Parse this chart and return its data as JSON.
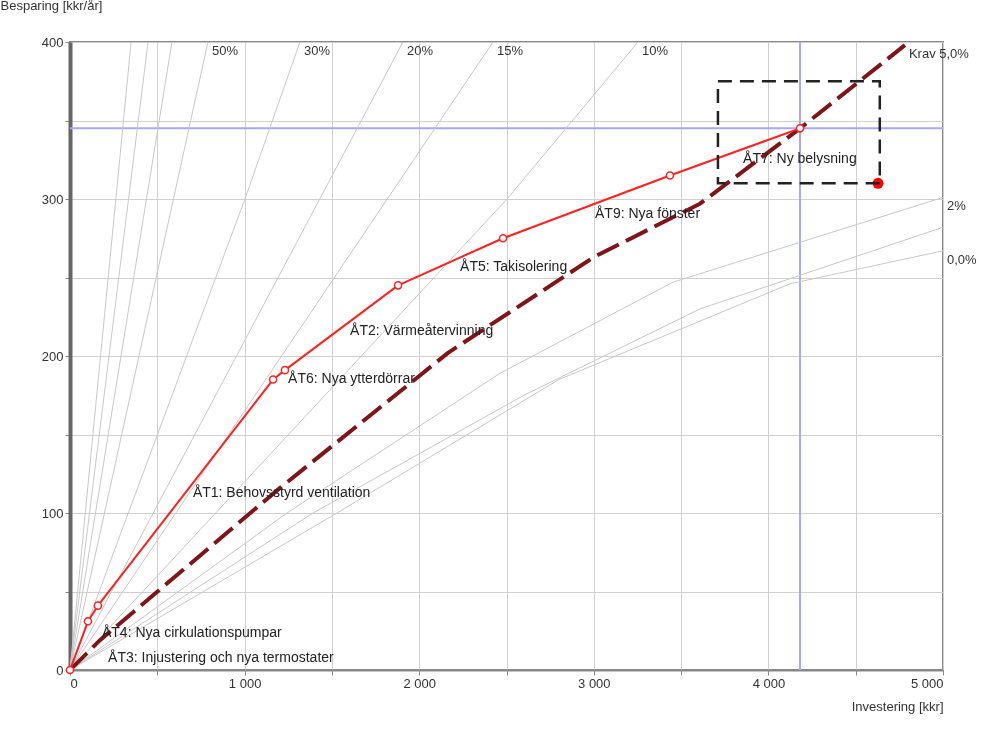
{
  "chart_data": {
    "type": "line",
    "xlabel": "Investering [kkr]",
    "ylabel": "Besparing [kkr/år]",
    "xlim": [
      0,
      5000
    ],
    "ylim": [
      0,
      400
    ],
    "xticks": [
      0,
      {
        "value": 500,
        "label": null
      },
      {
        "value": 1000,
        "label": "1 000"
      },
      {
        "value": 1500,
        "label": null
      },
      {
        "value": 2000,
        "label": "2 000"
      },
      {
        "value": 2500,
        "label": null
      },
      {
        "value": 3000,
        "label": "3 000"
      },
      {
        "value": 3500,
        "label": null
      },
      {
        "value": 4000,
        "label": "4 000"
      },
      {
        "value": 4500,
        "label": null
      },
      {
        "value": 5000,
        "label": "5 000"
      }
    ],
    "yticks": [
      0,
      {
        "value": 50,
        "label": null
      },
      100,
      {
        "value": 150,
        "label": null
      },
      200,
      {
        "value": 250,
        "label": null
      },
      300,
      {
        "value": 350,
        "label": null
      },
      400
    ],
    "grid": true,
    "series": [
      {
        "color": "#c8c8c8",
        "x": [
          0,
          350
        ],
        "values": [
          0,
          400
        ]
      },
      {
        "color": "#c8c8c8",
        "x": [
          0,
          447
        ],
        "values": [
          0,
          400
        ]
      },
      {
        "color": "#c8c8c8",
        "x": [
          0,
          584
        ],
        "values": [
          0,
          400
        ]
      },
      {
        "name": "50%",
        "color": "#c8c8c8",
        "x": [
          0,
          790
        ],
        "values": [
          0,
          400
        ]
      },
      {
        "name": "30%",
        "color": "#c8c8c8",
        "x": [
          0,
          1002,
          1317
        ],
        "values": [
          0,
          300,
          400
        ]
      },
      {
        "name": "20%",
        "color": "#c8c8c8",
        "x": [
          0,
          1907
        ],
        "values": [
          0,
          400
        ]
      },
      {
        "name": "15%",
        "color": "#c8c8c8",
        "x": [
          0,
          2423
        ],
        "values": [
          0,
          400
        ]
      },
      {
        "name": "10%",
        "color": "#c8c8c8",
        "x": [
          0,
          2503,
          3253
        ],
        "values": [
          0,
          300,
          400
        ]
      },
      {
        "name": "2%",
        "color": "#c8c8c8",
        "x": [
          0,
          1243,
          2463,
          3453,
          5000
        ],
        "values": [
          0,
          100,
          189,
          247,
          301
        ]
      },
      {
        "color": "#c8c8c8",
        "x": [
          0,
          1392,
          2600,
          3608,
          5000
        ],
        "values": [
          0,
          100,
          175,
          230,
          282
        ]
      },
      {
        "name": "0,0%",
        "color": "#c8c8c8",
        "x": [
          0,
          1529,
          2800,
          4124,
          5000
        ],
        "values": [
          0,
          100,
          185,
          246,
          267
        ]
      },
      {
        "name": "Krav 5,0%",
        "color": "#7f1518",
        "line_style": "dashed",
        "x": [
          0,
          172,
          1203,
          2165,
          3000,
          3608,
          4181,
          4782
        ],
        "values": [
          0,
          19,
          116,
          202,
          263,
          297,
          345,
          398
        ]
      },
      {
        "color": "#ff2020",
        "marker": "circle",
        "x": [
          0,
          103,
          160,
          1163,
          1231,
          1879,
          2480,
          3436,
          4181
        ],
        "values": [
          0,
          31,
          41,
          185,
          191,
          245,
          275,
          315,
          345
        ]
      },
      {
        "type": "scatter",
        "color": "#ff0000",
        "x": [
          4628
        ],
        "values": [
          310
        ]
      }
    ],
    "ref_lines": [
      {
        "axis": "x",
        "value": 4181,
        "color": "#a8a8ff"
      },
      {
        "axis": "y",
        "value": 345,
        "color": "#a8a8ff"
      }
    ],
    "annotations": [
      {
        "text": "ÅT7: Ny belysning",
        "x": 3855,
        "y": 332
      },
      {
        "text": "ÅT9: Nya fönster",
        "x": 3007,
        "y": 297
      },
      {
        "text": "ÅT5: Takisolering",
        "x": 2234,
        "y": 263
      },
      {
        "text": "ÅT2: Värmeåtervinning",
        "x": 1604,
        "y": 222
      },
      {
        "text": "ÅT6: Nya ytterdörrar",
        "x": 1249,
        "y": 192
      },
      {
        "text": "ÅT1: Behovsstyrd ventilation",
        "x": 704,
        "y": 119
      },
      {
        "text": "ÅT4: Nya cirkulationspumpar",
        "x": 183,
        "y": 30
      },
      {
        "text": "ÅT3: Injustering och nya termostater",
        "x": 218,
        "y": 14
      }
    ]
  }
}
